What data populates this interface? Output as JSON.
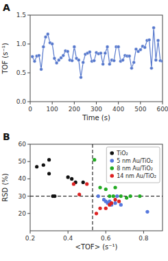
{
  "chart_data": [
    {
      "type": "line",
      "title": "A",
      "x": [
        10,
        20,
        30,
        40,
        50,
        60,
        70,
        80,
        90,
        100,
        110,
        120,
        130,
        140,
        150,
        160,
        170,
        180,
        190,
        200,
        210,
        220,
        230,
        240,
        250,
        260,
        270,
        280,
        290,
        300,
        310,
        320,
        330,
        340,
        350,
        360,
        370,
        380,
        390,
        400,
        410,
        420,
        430,
        440,
        450,
        460,
        470,
        480,
        490,
        500,
        510,
        520,
        530,
        540,
        550,
        560,
        570,
        580,
        590,
        600
      ],
      "values": [
        0.78,
        0.7,
        0.79,
        0.8,
        0.56,
        0.95,
        1.12,
        1.17,
        1.02,
        1.0,
        0.75,
        0.67,
        0.72,
        0.76,
        0.8,
        0.88,
        0.87,
        0.72,
        0.71,
        0.95,
        0.75,
        0.72,
        0.42,
        0.68,
        0.82,
        0.84,
        0.86,
        0.7,
        0.71,
        0.85,
        0.83,
        0.84,
        0.65,
        0.84,
        0.95,
        0.65,
        0.72,
        0.71,
        0.95,
        0.95,
        0.7,
        0.72,
        0.8,
        0.79,
        0.79,
        0.58,
        0.68,
        0.91,
        0.87,
        0.9,
        0.96,
        0.94,
        1.06,
        1.07,
        0.58,
        1.28,
        0.72,
        1.06,
        0.71,
        0.7
      ],
      "color": "#5577cc",
      "marker": "circle",
      "line_style": "solid",
      "x_label": "Time (s)",
      "y_label": "TOF (s⁻¹)",
      "xlim": [
        0,
        600
      ],
      "ylim": [
        0.0,
        1.5
      ],
      "xticks": [
        0,
        100,
        200,
        300,
        400,
        500,
        600
      ],
      "yticks": [
        {
          "value": 0.0,
          "label": "0.0"
        },
        0.5,
        {
          "value": 1.0,
          "label": "1.0"
        },
        1.5
      ],
      "grid": false
    },
    {
      "type": "scatter",
      "title": "B",
      "series": [
        {
          "name": "TiO₂",
          "color": "#111111",
          "x": [
            0.235,
            0.27,
            0.3,
            0.3,
            0.32,
            0.33,
            0.4,
            0.42,
            0.44,
            0.48
          ],
          "values": [
            47,
            48,
            51,
            43,
            30,
            30,
            41,
            40,
            38,
            38
          ]
        },
        {
          "name": "5 nm Au/TiO₂",
          "color": "#5577dd",
          "x": [
            0.56,
            0.59,
            0.6,
            0.61,
            0.62,
            0.63,
            0.65,
            0.66,
            0.68,
            0.82
          ],
          "values": [
            30,
            28,
            27,
            26,
            27,
            25,
            26,
            30,
            25,
            21
          ]
        },
        {
          "name": "8 nm Au/TiO₂",
          "color": "#22aa22",
          "x": [
            0.54,
            0.57,
            0.6,
            0.62,
            0.64,
            0.65,
            0.68,
            0.71,
            0.73,
            0.78
          ],
          "values": [
            51,
            35,
            34,
            30,
            30,
            35,
            30,
            29,
            30,
            30
          ]
        },
        {
          "name": "14 nm Au/TiO₂",
          "color": "#dd2222",
          "x": [
            0.43,
            0.46,
            0.5,
            0.55,
            0.57,
            0.6,
            0.62,
            0.63,
            0.65,
            0.67
          ],
          "values": [
            37,
            31,
            37,
            20,
            23,
            23,
            25,
            26,
            28,
            27
          ]
        }
      ],
      "marker": "circle",
      "reference_lines": [
        {
          "axis": "x",
          "value": 0.53,
          "line_style": "dashed"
        },
        {
          "axis": "y",
          "value": 30,
          "line_style": "dashed"
        }
      ],
      "x_label": "<TOF> (s⁻¹)",
      "y_label": "RSD (%)",
      "xlim": [
        0.2,
        0.9
      ],
      "ylim": [
        10,
        60
      ],
      "xticks": [
        0.2,
        0.4,
        0.6,
        0.8
      ],
      "yticks": [
        20,
        30,
        40,
        50,
        60
      ],
      "legend": "upper right",
      "grid": false
    }
  ]
}
